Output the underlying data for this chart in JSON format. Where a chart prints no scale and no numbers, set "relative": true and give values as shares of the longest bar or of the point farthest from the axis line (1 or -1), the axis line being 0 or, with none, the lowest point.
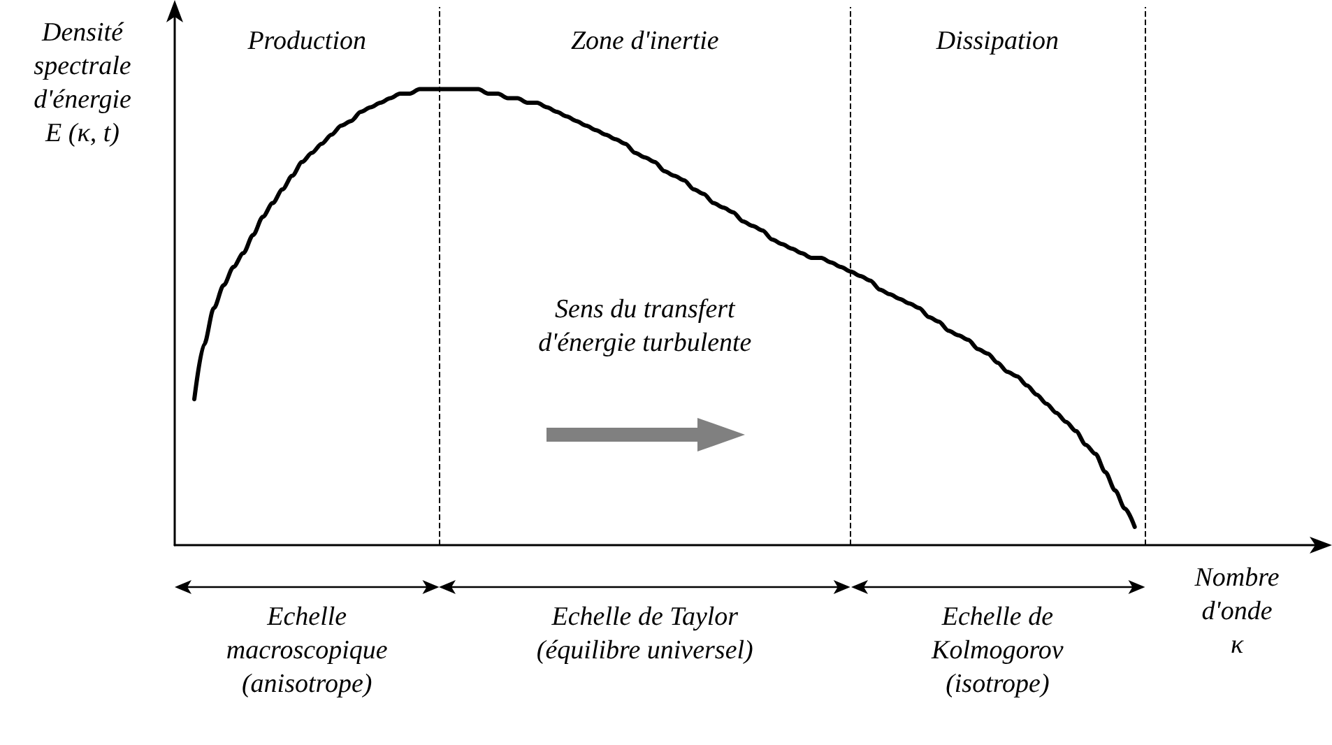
{
  "chart_data": {
    "type": "line",
    "relative": true,
    "ylabel": "Densité\nspectrale\nd'énergie\nE (κ, t)",
    "xlabel": "Nombre\nd'onde\nκ",
    "categories": [
      null,
      null,
      null,
      null,
      null,
      null,
      null,
      null,
      null,
      null,
      null,
      null,
      null,
      null,
      null,
      null,
      null,
      null,
      null,
      null,
      null,
      null,
      null,
      null,
      null,
      null,
      null,
      null,
      null,
      null,
      null,
      null,
      null,
      null,
      null,
      null,
      null,
      null,
      null,
      null,
      null,
      null,
      null,
      null,
      null,
      null,
      null,
      null,
      null,
      null,
      null,
      null,
      null,
      null,
      null,
      null,
      null,
      null,
      null,
      null,
      null,
      null,
      null,
      null,
      null,
      null,
      null,
      null,
      null,
      null,
      null,
      null,
      null,
      null,
      null,
      null,
      null,
      null,
      null,
      null,
      null,
      null,
      null,
      null,
      null,
      null,
      null,
      null,
      null,
      null,
      null,
      null,
      null,
      null,
      null,
      null,
      null,
      null,
      null,
      null,
      null,
      null,
      null,
      null,
      null,
      null,
      null,
      null,
      null,
      null,
      null,
      null,
      null,
      null,
      null,
      null,
      null,
      null
    ],
    "series": [
      {
        "color": "#000000",
        "values": [
          null,
          null,
          0.32,
          0.44,
          0.52,
          0.57,
          0.61,
          0.64,
          0.68,
          0.72,
          0.75,
          0.78,
          0.81,
          0.84,
          0.86,
          0.88,
          0.9,
          0.92,
          0.93,
          0.95,
          0.96,
          0.97,
          0.98,
          0.99,
          0.99,
          1.0,
          1.0,
          1.0,
          1.0,
          1.0,
          1.0,
          1.0,
          0.99,
          0.99,
          0.98,
          0.98,
          0.97,
          0.97,
          0.96,
          0.95,
          0.94,
          0.93,
          0.92,
          0.91,
          0.9,
          0.89,
          0.88,
          0.86,
          0.85,
          0.84,
          0.82,
          0.81,
          0.8,
          0.78,
          0.77,
          0.75,
          0.74,
          0.73,
          0.71,
          0.7,
          0.69,
          0.67,
          0.66,
          0.65,
          0.64,
          0.63,
          0.63,
          0.62,
          0.61,
          0.6,
          0.59,
          0.58,
          0.56,
          0.55,
          0.54,
          0.53,
          0.52,
          0.5,
          0.49,
          0.47,
          0.46,
          0.45,
          0.43,
          0.42,
          0.4,
          0.38,
          0.37,
          0.35,
          0.33,
          0.31,
          0.29,
          0.27,
          0.25,
          0.22,
          0.2,
          0.16,
          0.12,
          0.08,
          0.04,
          null,
          null,
          null,
          null,
          null,
          null,
          null,
          null,
          null,
          null,
          null,
          null,
          null,
          null,
          null,
          null,
          null,
          null,
          null
        ]
      }
    ],
    "annotations": [
      "Production",
      "Zone d'inertie",
      "Dissipation",
      "Sens du transfert\nd'énergie turbulente",
      "Echelle\nmacroscopique\n(anisotrope)",
      "Echelle de Taylor\n(équilibre universel)",
      "Echelle de\nKolmogorov\n(isotrope)"
    ],
    "marker": "none",
    "line_style": "solid",
    "grid": false
  }
}
